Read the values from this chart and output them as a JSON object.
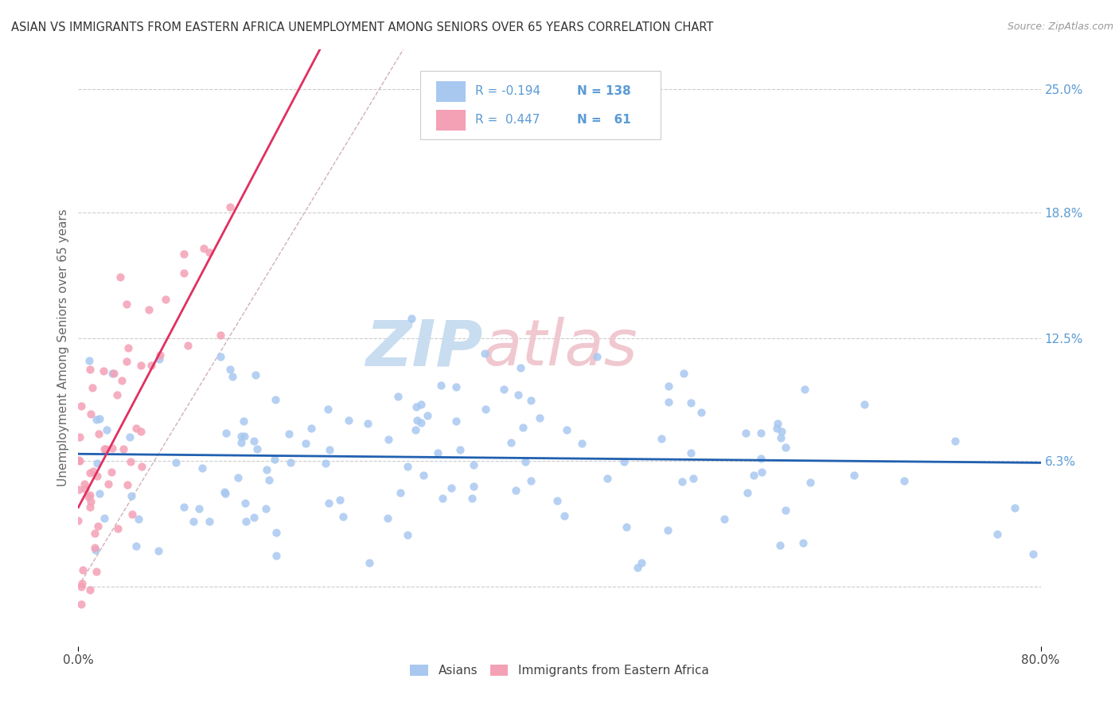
{
  "title": "ASIAN VS IMMIGRANTS FROM EASTERN AFRICA UNEMPLOYMENT AMONG SENIORS OVER 65 YEARS CORRELATION CHART",
  "source": "Source: ZipAtlas.com",
  "ylabel": "Unemployment Among Seniors over 65 years",
  "xlim": [
    0.0,
    0.8
  ],
  "ylim": [
    -0.03,
    0.27
  ],
  "ytick_vals": [
    0.0,
    0.063,
    0.125,
    0.188,
    0.25
  ],
  "ytick_labels": [
    "",
    "6.3%",
    "12.5%",
    "18.8%",
    "25.0%"
  ],
  "legend_r_asian": "-0.194",
  "legend_n_asian": "138",
  "legend_r_eastern": "0.447",
  "legend_n_eastern": "61",
  "scatter_color_asian": "#a8c8f0",
  "scatter_color_eastern": "#f4a0b5",
  "trend_color_asian": "#2060b0",
  "trend_color_eastern": "#e03060",
  "ref_line_color": "#d0b0b8",
  "background_color": "#ffffff",
  "title_color": "#333333",
  "axis_label_color": "#666666",
  "right_tick_color": "#5b9bd5",
  "legend_text_color": "#5b9bd5",
  "watermark_zip_color": "#c8ddf0",
  "watermark_atlas_color": "#f0c8d0"
}
